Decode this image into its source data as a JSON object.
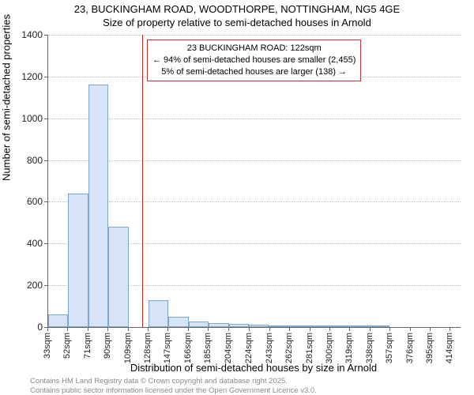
{
  "title": {
    "main": "23, BUCKINGHAM ROAD, WOODTHORPE, NOTTINGHAM, NG5 4GE",
    "sub": "Size of property relative to semi-detached houses in Arnold"
  },
  "chart": {
    "type": "histogram",
    "ylabel": "Number of semi-detached properties",
    "xlabel": "Distribution of semi-detached houses by size in Arnold",
    "ylim": [
      0,
      1400
    ],
    "yticks": [
      0,
      200,
      400,
      600,
      800,
      1000,
      1200,
      1400
    ],
    "xticks": [
      33,
      52,
      71,
      90,
      109,
      128,
      147,
      166,
      185,
      204,
      224,
      243,
      262,
      281,
      300,
      319,
      338,
      357,
      376,
      395,
      414
    ],
    "xtick_suffix": "sqm",
    "x_min": 33,
    "x_max": 423.5,
    "bar_x_start": 33,
    "bar_width_units": 19,
    "values": [
      60,
      640,
      1160,
      480,
      0,
      130,
      50,
      25,
      20,
      15,
      10,
      5,
      3,
      2,
      1,
      1,
      1,
      0,
      0,
      0,
      0
    ],
    "bar_fill": "#d6e4f5",
    "bar_border": "#7ba7d1",
    "background_color": "#ffffff",
    "grid_color": "#c0c0c0",
    "marker_value": 122,
    "marker_color": "#d02020",
    "annotation": {
      "line1": "23 BUCKINGHAM ROAD: 122sqm",
      "line2": "← 94% of semi-detached houses are smaller (2,455)",
      "line3": "5% of semi-detached houses are larger (138) →",
      "border_color": "#cc3333"
    }
  },
  "attribution": {
    "line1": "Contains HM Land Registry data © Crown copyright and database right 2025.",
    "line2": "Contains public sector information licensed under the Open Government Licence v3.0."
  },
  "fonts": {
    "title_size": 13,
    "axis_label_size": 13,
    "tick_size": 12,
    "annotation_size": 11,
    "attribution_size": 9.5
  }
}
